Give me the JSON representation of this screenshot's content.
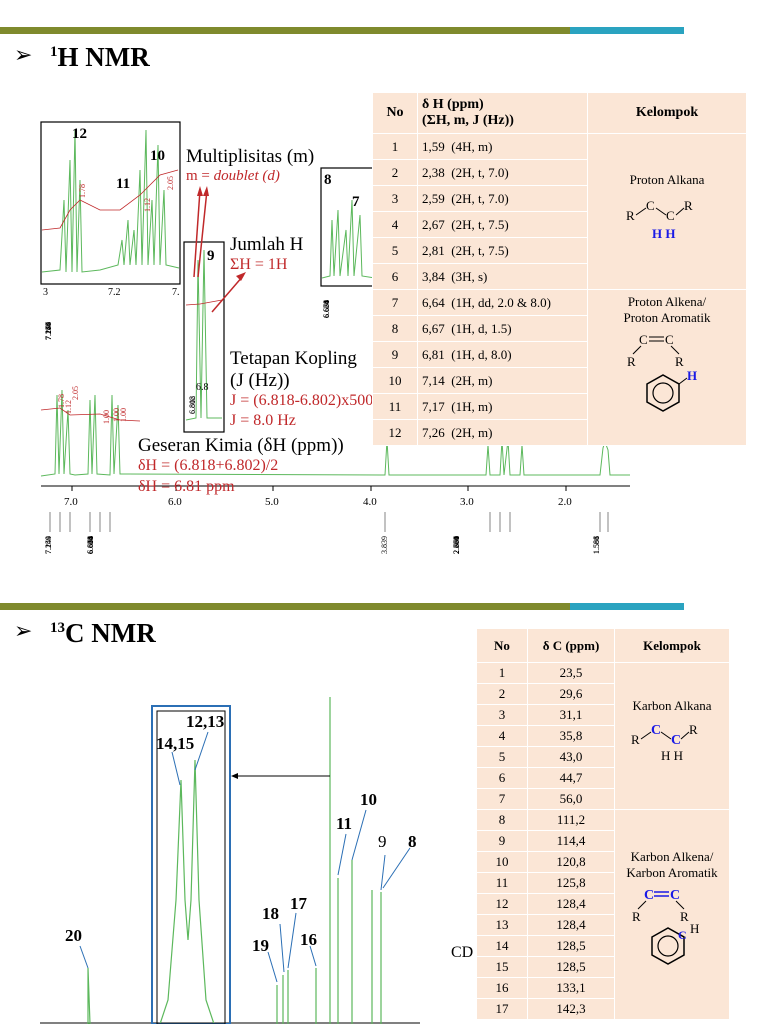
{
  "h1": {
    "heading_sup": "1",
    "heading": "H NMR",
    "bullet": "➢",
    "annotations": {
      "mult_title": "Multiplisitas (m)",
      "mult_formula": "m = ",
      "mult_value": "doublet (d)",
      "sum_title": "Jumlah H",
      "sum_value": "ΣH = 1H",
      "coupling_title": "Tetapan Kopling",
      "coupling_sub": "(J (Hz))",
      "coupling_formula": "J = (6.818-6.802)x500",
      "coupling_value": "J = 8.0 Hz",
      "shift_title": "Geseran Kimia (δH (ppm))",
      "shift_formula": "δH = (6.818+6.802)/2",
      "shift_value": "δH = 6.81 ppm"
    },
    "inset_labels": {
      "p12": "12",
      "p10": "10",
      "p11": "11",
      "p9": "9",
      "p8": "8",
      "p7": "7"
    },
    "inset_ticks": {
      "a": "3",
      "b": "7.2",
      "c": "7.",
      "d": "6.8"
    },
    "inset_values": {
      "left": [
        "7.274",
        "7.270",
        "7.259",
        "7.247",
        "7.244",
        "7.188",
        "7.175",
        "7.164",
        "7.149",
        "7.135"
      ],
      "mid": [
        "6.818",
        "6.802"
      ],
      "right": [
        "6.671",
        "6.668",
        "6.654",
        "6.650",
        "6.638",
        "6.634"
      ]
    },
    "integral_labels": [
      "1.78",
      "1.12",
      "2.05",
      "1.00",
      "1.00",
      "1.00",
      "1.12",
      "2.05",
      "1.78"
    ],
    "axis_ticks": [
      "7.0",
      "6.0",
      "5.0",
      "4.0",
      "3.0",
      "2.0"
    ],
    "peak_values": {
      "g1": [
        "7.259",
        "7.244",
        "7.149"
      ],
      "g2": [
        "6.818",
        "6.802",
        "6.671",
        "6.668",
        "6.654",
        "6.650",
        "6.638",
        "6.634"
      ],
      "g3": [
        "3.839"
      ],
      "g4": [
        "2.806",
        "2.791",
        "2.680",
        "2.665",
        "2.651",
        "2.589",
        "2.384",
        "2.370"
      ],
      "g5": [
        "1.596",
        "1.588",
        "1.581"
      ]
    },
    "table": {
      "headers": [
        "No",
        "δ H (ppm)",
        "(ΣH, m, J (Hz))",
        "Kelompok"
      ],
      "rows": [
        {
          "no": "1",
          "shift": "1,59",
          "detail": "(4H, m)"
        },
        {
          "no": "2",
          "shift": "2,38",
          "detail": "(2H, t, 7.0)"
        },
        {
          "no": "3",
          "shift": "2,59",
          "detail": "(2H, t, 7.0)"
        },
        {
          "no": "4",
          "shift": "2,67",
          "detail": "(2H, t, 7.5)"
        },
        {
          "no": "5",
          "shift": "2,81",
          "detail": "(2H, t, 7.5)"
        },
        {
          "no": "6",
          "shift": "3,84",
          "detail": "(3H, s)"
        },
        {
          "no": "7",
          "shift": "6,64",
          "detail": "(1H, dd, 2.0 & 8.0)"
        },
        {
          "no": "8",
          "shift": "6,67",
          "detail": "(1H, d, 1.5)"
        },
        {
          "no": "9",
          "shift": "6,81",
          "detail": "(1H, d, 8.0)"
        },
        {
          "no": "10",
          "shift": "7,14",
          "detail": "(2H, m)"
        },
        {
          "no": "11",
          "shift": "7,17",
          "detail": "(1H, m)"
        },
        {
          "no": "12",
          "shift": "7,26",
          "detail": "(2H, m)"
        }
      ],
      "group1": "Proton Alkana",
      "group2a": "Proton Alkena/",
      "group2b": "Proton Aromatik",
      "struct": {
        "r": "R",
        "c": "C",
        "h": "H",
        "hh": "H H"
      }
    }
  },
  "c13": {
    "heading_sup": "13",
    "heading": "C NMR",
    "bullet": "➢",
    "peak_labels": [
      "12,13",
      "14,15",
      "10",
      "11",
      "9",
      "8",
      "17",
      "18",
      "19",
      "16",
      "20"
    ],
    "cd_label": "CD",
    "table": {
      "headers": [
        "No",
        "δ C (ppm)",
        "Kelompok"
      ],
      "rows": [
        {
          "no": "1",
          "shift": "23,5"
        },
        {
          "no": "2",
          "shift": "29,6"
        },
        {
          "no": "3",
          "shift": "31,1"
        },
        {
          "no": "4",
          "shift": "35,8"
        },
        {
          "no": "5",
          "shift": "43,0"
        },
        {
          "no": "6",
          "shift": "44,7"
        },
        {
          "no": "7",
          "shift": "56,0"
        },
        {
          "no": "8",
          "shift": "111,2"
        },
        {
          "no": "9",
          "shift": "114,4"
        },
        {
          "no": "10",
          "shift": "120,8"
        },
        {
          "no": "11",
          "shift": "125,8"
        },
        {
          "no": "12",
          "shift": "128,4"
        },
        {
          "no": "13",
          "shift": "128,4"
        },
        {
          "no": "14",
          "shift": "128,5"
        },
        {
          "no": "15",
          "shift": "128,5"
        },
        {
          "no": "16",
          "shift": "133,1"
        },
        {
          "no": "17",
          "shift": "142,3"
        }
      ],
      "group1": "Karbon Alkana",
      "group2a": "Karbon Alkena/",
      "group2b": "Karbon Aromatik",
      "struct": {
        "r": "R",
        "c": "C",
        "h": "H",
        "hh": "H H"
      }
    }
  }
}
